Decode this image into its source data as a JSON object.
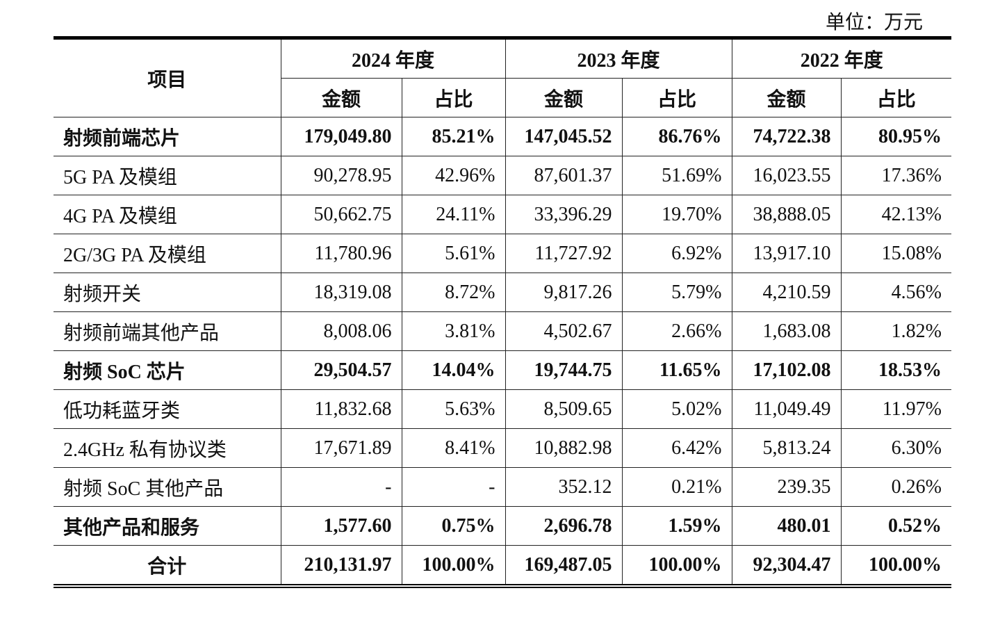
{
  "unit": "单位：万元",
  "table": {
    "item_header": "项目",
    "years": [
      "2024 年度",
      "2023 年度",
      "2022 年度"
    ],
    "subheaders": [
      "金额",
      "占比",
      "金额",
      "占比",
      "金额",
      "占比"
    ],
    "rows": [
      {
        "label": "射频前端芯片",
        "bold": true,
        "cells": [
          "179,049.80",
          "85.21%",
          "147,045.52",
          "86.76%",
          "74,722.38",
          "80.95%"
        ]
      },
      {
        "label": "5G PA 及模组",
        "bold": false,
        "cells": [
          "90,278.95",
          "42.96%",
          "87,601.37",
          "51.69%",
          "16,023.55",
          "17.36%"
        ]
      },
      {
        "label": "4G PA 及模组",
        "bold": false,
        "cells": [
          "50,662.75",
          "24.11%",
          "33,396.29",
          "19.70%",
          "38,888.05",
          "42.13%"
        ]
      },
      {
        "label": "2G/3G PA 及模组",
        "bold": false,
        "cells": [
          "11,780.96",
          "5.61%",
          "11,727.92",
          "6.92%",
          "13,917.10",
          "15.08%"
        ]
      },
      {
        "label": "射频开关",
        "bold": false,
        "cells": [
          "18,319.08",
          "8.72%",
          "9,817.26",
          "5.79%",
          "4,210.59",
          "4.56%"
        ]
      },
      {
        "label": "射频前端其他产品",
        "bold": false,
        "cells": [
          "8,008.06",
          "3.81%",
          "4,502.67",
          "2.66%",
          "1,683.08",
          "1.82%"
        ]
      },
      {
        "label": "射频 SoC 芯片",
        "bold": true,
        "cells": [
          "29,504.57",
          "14.04%",
          "19,744.75",
          "11.65%",
          "17,102.08",
          "18.53%"
        ]
      },
      {
        "label": "低功耗蓝牙类",
        "bold": false,
        "cells": [
          "11,832.68",
          "5.63%",
          "8,509.65",
          "5.02%",
          "11,049.49",
          "11.97%"
        ]
      },
      {
        "label": "2.4GHz 私有协议类",
        "bold": false,
        "cells": [
          "17,671.89",
          "8.41%",
          "10,882.98",
          "6.42%",
          "5,813.24",
          "6.30%"
        ]
      },
      {
        "label": "射频 SoC 其他产品",
        "bold": false,
        "cells": [
          "-",
          "-",
          "352.12",
          "0.21%",
          "239.35",
          "0.26%"
        ]
      },
      {
        "label": "其他产品和服务",
        "bold": true,
        "cells": [
          "1,577.60",
          "0.75%",
          "2,696.78",
          "1.59%",
          "480.01",
          "0.52%"
        ]
      },
      {
        "label": "合计",
        "bold": true,
        "total": true,
        "cells": [
          "210,131.97",
          "100.00%",
          "169,487.05",
          "100.00%",
          "92,304.47",
          "100.00%"
        ]
      }
    ]
  }
}
